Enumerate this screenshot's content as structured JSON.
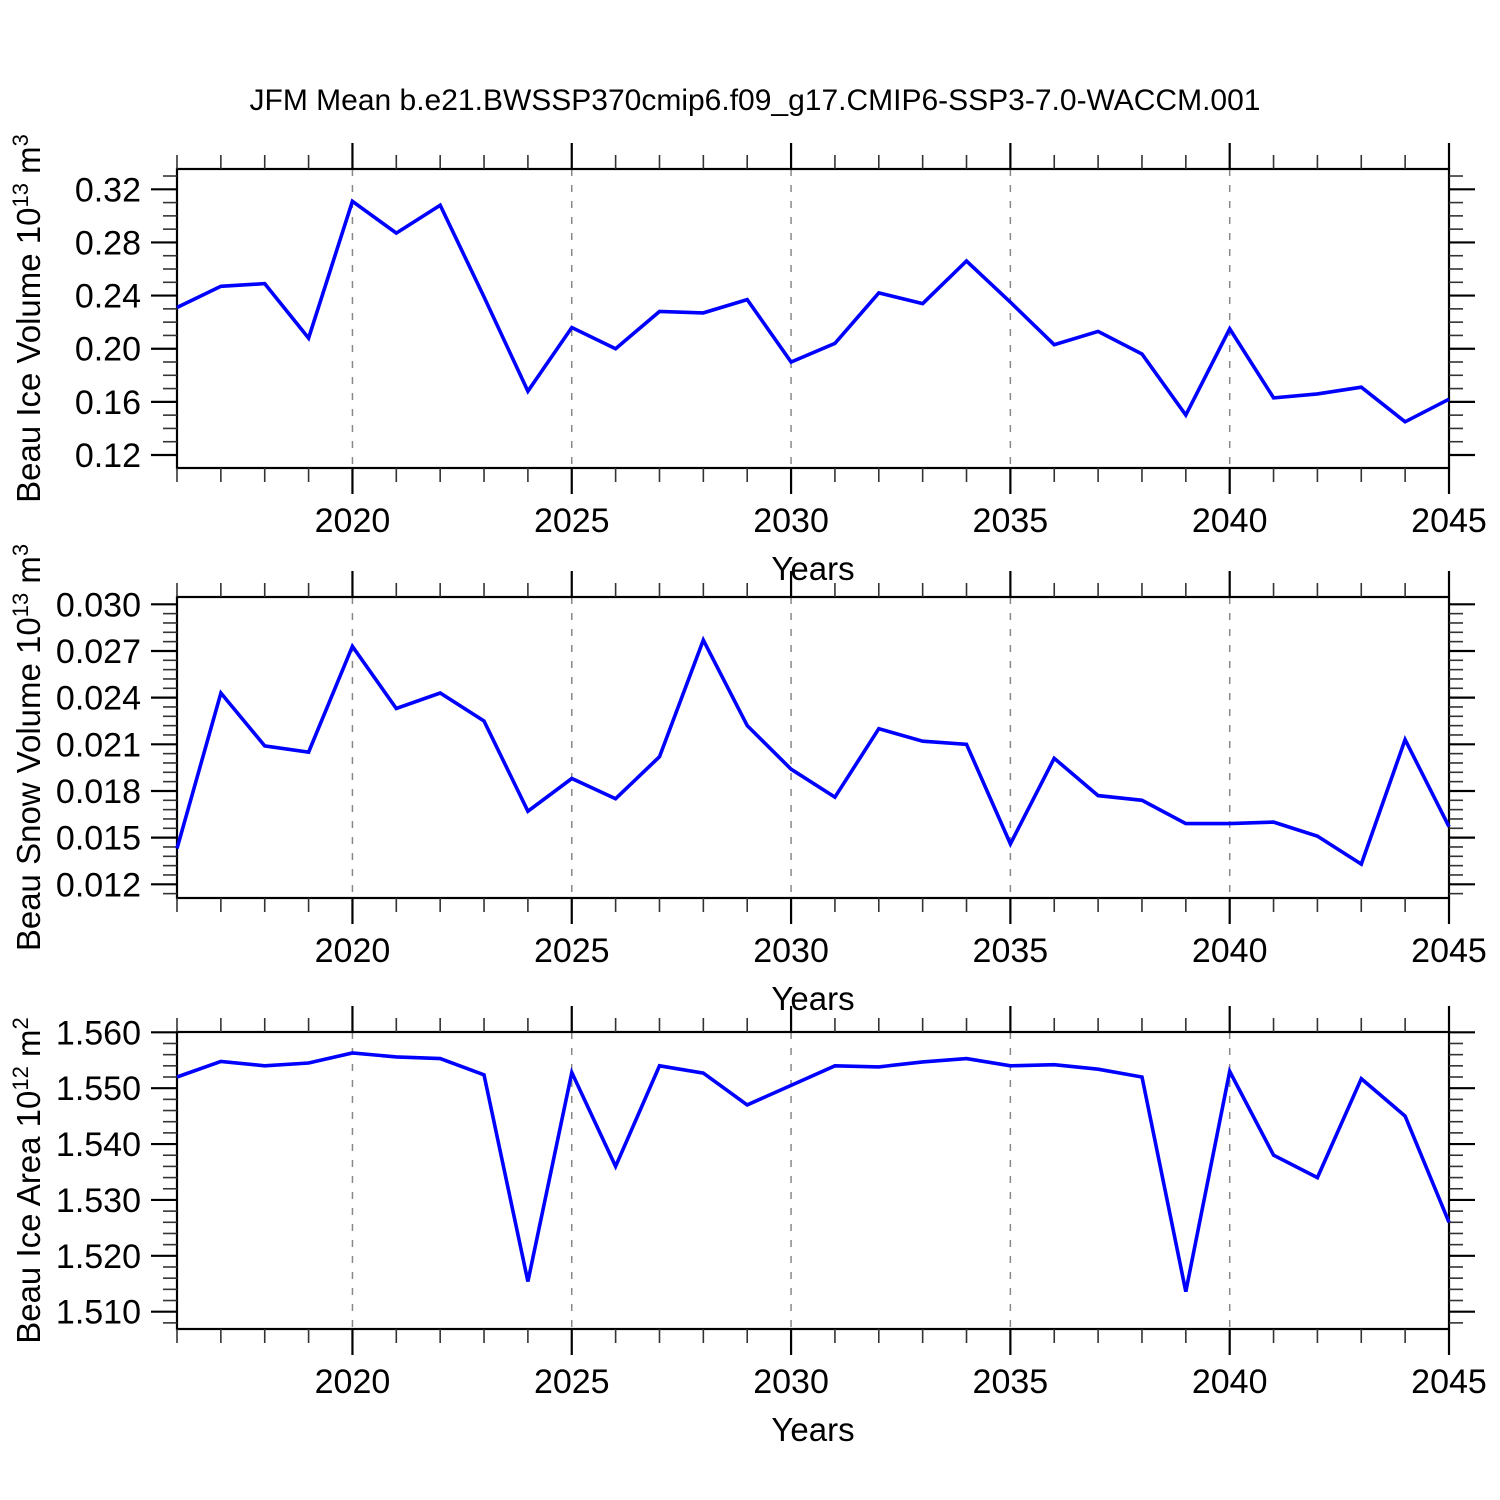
{
  "title": "JFM Mean b.e21.BWSSP370cmip6.f09_g17.CMIP6-SSP3-7.0-WACCM.001",
  "xlabel": "Years",
  "colors": {
    "line": "#0000ff",
    "frame": "#000000",
    "grid": "#888888",
    "minor_tick": "#333333"
  },
  "years": [
    2016,
    2017,
    2018,
    2019,
    2020,
    2021,
    2022,
    2023,
    2024,
    2025,
    2026,
    2027,
    2028,
    2029,
    2030,
    2031,
    2032,
    2033,
    2034,
    2035,
    2036,
    2037,
    2038,
    2039,
    2040,
    2041,
    2042,
    2043,
    2044,
    2045
  ],
  "xticks": [
    {
      "year": 2020,
      "label": "2020"
    },
    {
      "year": 2025,
      "label": "2025"
    },
    {
      "year": 2030,
      "label": "2030"
    },
    {
      "year": 2035,
      "label": "2035"
    },
    {
      "year": 2040,
      "label": "2040"
    },
    {
      "year": 2045,
      "label": "2045"
    }
  ],
  "grid_years": [
    2020,
    2025,
    2030,
    2035,
    2040
  ],
  "chart_data": [
    {
      "type": "line",
      "name": "beau-ice-volume",
      "ylabel": "Beau Ice Volume 10^13 m^3",
      "ylabel_segments": [
        {
          "t": "Beau Ice Volume 10",
          "sup": false
        },
        {
          "t": "13",
          "sup": true
        },
        {
          "t": " m",
          "sup": false
        },
        {
          "t": "3",
          "sup": true
        }
      ],
      "xlabel": "Years",
      "ylim": [
        0.11,
        0.335
      ],
      "yticks": [
        {
          "v": 0.12,
          "label": "0.12"
        },
        {
          "v": 0.16,
          "label": "0.16"
        },
        {
          "v": 0.2,
          "label": "0.20"
        },
        {
          "v": 0.24,
          "label": "0.24"
        },
        {
          "v": 0.28,
          "label": "0.28"
        },
        {
          "v": 0.32,
          "label": "0.32"
        }
      ],
      "values": [
        0.231,
        0.247,
        0.249,
        0.208,
        0.311,
        0.287,
        0.308,
        0.239,
        0.168,
        0.216,
        0.2,
        0.228,
        0.227,
        0.237,
        0.19,
        0.204,
        0.242,
        0.234,
        0.266,
        0.235,
        0.203,
        0.213,
        0.196,
        0.15,
        0.215,
        0.163,
        0.166,
        0.171,
        0.145,
        0.162
      ]
    },
    {
      "type": "line",
      "name": "beau-snow-volume",
      "ylabel": "Beau Snow Volume 10^13 m^3",
      "ylabel_segments": [
        {
          "t": "Beau Snow Volume 10",
          "sup": false
        },
        {
          "t": "13",
          "sup": true
        },
        {
          "t": " m",
          "sup": false
        },
        {
          "t": "3",
          "sup": true
        }
      ],
      "xlabel": "Years",
      "ylim": [
        0.0111,
        0.0305
      ],
      "yticks": [
        {
          "v": 0.012,
          "label": "0.012"
        },
        {
          "v": 0.015,
          "label": "0.015"
        },
        {
          "v": 0.018,
          "label": "0.018"
        },
        {
          "v": 0.021,
          "label": "0.021"
        },
        {
          "v": 0.024,
          "label": "0.024"
        },
        {
          "v": 0.027,
          "label": "0.027"
        },
        {
          "v": 0.03,
          "label": "0.030"
        }
      ],
      "values": [
        0.0143,
        0.0243,
        0.0209,
        0.0205,
        0.0273,
        0.0233,
        0.0243,
        0.0225,
        0.0167,
        0.0188,
        0.0175,
        0.0202,
        0.0277,
        0.0222,
        0.0194,
        0.0176,
        0.022,
        0.0212,
        0.021,
        0.0146,
        0.0201,
        0.0177,
        0.0174,
        0.0159,
        0.0159,
        0.016,
        0.0151,
        0.0133,
        0.0213,
        0.0157
      ]
    },
    {
      "type": "line",
      "name": "beau-ice-area",
      "ylabel": "Beau Ice Area 10^12 m^2",
      "ylabel_segments": [
        {
          "t": "Beau Ice Area 10",
          "sup": false
        },
        {
          "t": "12",
          "sup": true
        },
        {
          "t": " m",
          "sup": false
        },
        {
          "t": "2",
          "sup": true
        }
      ],
      "xlabel": "Years",
      "ylim": [
        1.507,
        1.56
      ],
      "yticks": [
        {
          "v": 1.51,
          "label": "1.510"
        },
        {
          "v": 1.52,
          "label": "1.520"
        },
        {
          "v": 1.53,
          "label": "1.530"
        },
        {
          "v": 1.54,
          "label": "1.540"
        },
        {
          "v": 1.55,
          "label": "1.550"
        },
        {
          "v": 1.56,
          "label": "1.560"
        }
      ],
      "values": [
        1.552,
        1.5548,
        1.554,
        1.5545,
        1.5563,
        1.5556,
        1.5553,
        1.5524,
        1.5154,
        1.5528,
        1.536,
        1.554,
        1.5527,
        1.547,
        1.5505,
        1.554,
        1.5538,
        1.5547,
        1.5553,
        1.554,
        1.5542,
        1.5534,
        1.552,
        1.5136,
        1.553,
        1.538,
        1.534,
        1.5517,
        1.545,
        1.526
      ]
    }
  ]
}
